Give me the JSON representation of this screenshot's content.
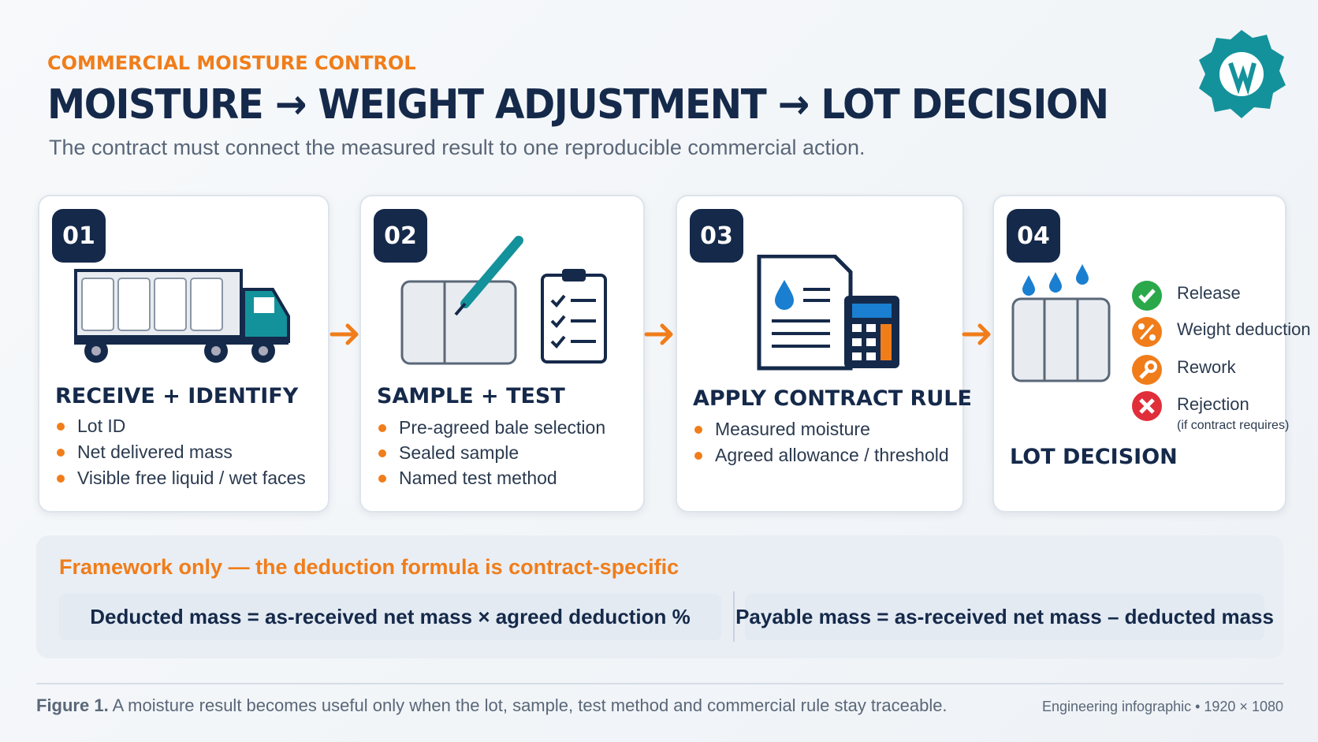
{
  "header": {
    "kicker": "COMMERCIAL MOISTURE CONTROL",
    "title": "MOISTURE → WEIGHT ADJUSTMENT → LOT DECISION",
    "subtitle": "The contract must connect the measured result to one reproducible commercial action."
  },
  "steps": [
    {
      "number": "01",
      "title": "RECEIVE + IDENTIFY",
      "items": [
        "Lot ID",
        "Net delivered mass",
        "Visible free liquid / wet faces"
      ]
    },
    {
      "number": "02",
      "title": "SAMPLE + TEST",
      "items": [
        "Pre-agreed bale selection",
        "Sealed sample",
        "Named test method"
      ]
    },
    {
      "number": "03",
      "title": "APPLY CONTRACT RULE",
      "items": [
        "Measured moisture",
        "Agreed allowance / threshold"
      ]
    },
    {
      "number": "04",
      "title": "LOT DECISION",
      "outcomes": [
        {
          "label": "Release"
        },
        {
          "label": "Weight deduction"
        },
        {
          "label": "Rework"
        },
        {
          "label": "Rejection",
          "note": "(if contract requires)"
        }
      ]
    }
  ],
  "framework": {
    "note": "Framework only — the deduction formula is contract-specific",
    "formulas": [
      "Deducted mass = as-received net mass × agreed deduction %",
      "Payable mass = as-received net mass – deducted mass"
    ]
  },
  "footer": {
    "caption_label": "Figure 1.",
    "caption_text": "A moisture result becomes useful only when the lot, sample, test method and commercial rule stay traceable.",
    "meta": "Engineering infographic • 1920 × 1080"
  }
}
